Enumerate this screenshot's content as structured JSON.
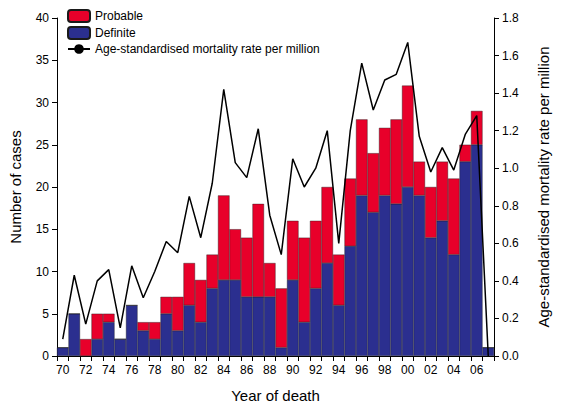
{
  "chart_data": {
    "type": "bar",
    "stacked": true,
    "x_label": "Year of death",
    "y_label": "Number of cases",
    "y2_label": "Age-standardised mortality rate per million",
    "categories": [
      "70",
      null,
      "72",
      null,
      "74",
      null,
      "76",
      null,
      "78",
      null,
      "80",
      null,
      "82",
      null,
      "84",
      null,
      "86",
      null,
      "88",
      null,
      "90",
      null,
      "92",
      null,
      "94",
      null,
      "96",
      null,
      "98",
      null,
      "00",
      null,
      "02",
      null,
      "04",
      null,
      "06",
      null
    ],
    "series": [
      {
        "name": "Probable",
        "type": "bar",
        "color": "#e8002a",
        "values": [
          0,
          0,
          2,
          3,
          1,
          0,
          0,
          1,
          2,
          2,
          4,
          5,
          5,
          4,
          10,
          6,
          7,
          11,
          4,
          7,
          7,
          10,
          8,
          9,
          6,
          8,
          9,
          7,
          8,
          10,
          12,
          4,
          6,
          7,
          9,
          2,
          4,
          0
        ]
      },
      {
        "name": "Definite",
        "type": "bar",
        "color": "#2b2f8f",
        "values": [
          1,
          5,
          0,
          2,
          4,
          2,
          6,
          3,
          2,
          5,
          3,
          6,
          4,
          8,
          9,
          9,
          7,
          7,
          7,
          1,
          9,
          4,
          8,
          11,
          6,
          13,
          19,
          17,
          19,
          18,
          20,
          19,
          14,
          16,
          12,
          23,
          25,
          1
        ]
      },
      {
        "name": "Age-standardised mortality rate per million",
        "type": "line",
        "axis": "y2",
        "color": "#000000",
        "line_style": "solid",
        "values": [
          0.09,
          0.43,
          0.17,
          0.4,
          0.46,
          0.15,
          0.48,
          0.31,
          0.45,
          0.61,
          0.55,
          0.85,
          0.63,
          0.92,
          1.42,
          1.03,
          0.95,
          1.21,
          0.75,
          0.54,
          1.05,
          0.9,
          1.0,
          1.2,
          0.6,
          1.2,
          1.56,
          1.31,
          1.47,
          1.5,
          1.67,
          1.17,
          0.98,
          1.11,
          0.99,
          1.18,
          1.28,
          0.0
        ]
      }
    ],
    "ylim": [
      0,
      40
    ],
    "yticks": [
      0,
      5,
      10,
      15,
      20,
      25,
      30,
      35,
      40
    ],
    "y2lim": [
      0,
      1.8
    ],
    "y2ticks": [
      {
        "value": 0,
        "label": "0.0"
      },
      0.2,
      0.4,
      0.6,
      0.8,
      {
        "value": 1,
        "label": "1.0"
      },
      1.2,
      1.4,
      1.6,
      1.8
    ],
    "legend": "top-left",
    "grid": false
  }
}
